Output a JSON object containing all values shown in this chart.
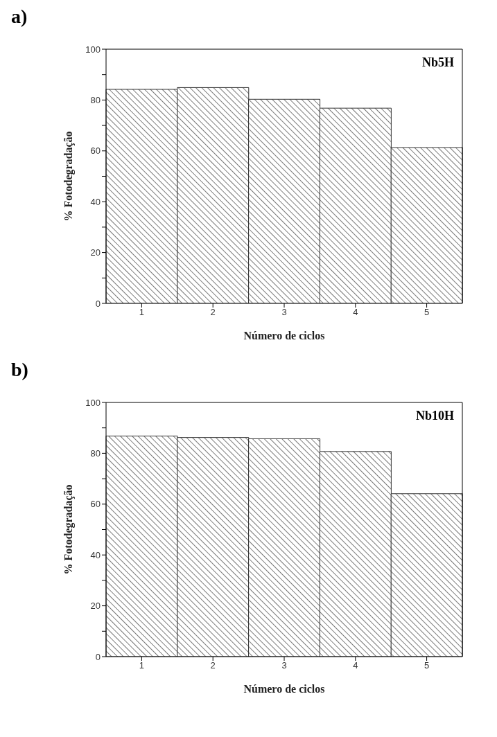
{
  "chart_data": [
    {
      "type": "bar",
      "title": "a)",
      "xlabel": "Número de ciclos",
      "ylabel": "%  Fotodegradação",
      "annotations": [
        "Nb5H"
      ],
      "categories": [
        "1",
        "2",
        "3",
        "4",
        "5"
      ],
      "values": [
        84.2,
        84.9,
        80.3,
        76.8,
        61.3
      ],
      "color": "#333333",
      "ylim": [
        0,
        100
      ],
      "yticks": [
        0,
        {
          "value": 10,
          "label": null
        },
        20,
        {
          "value": 30,
          "label": null
        },
        40,
        {
          "value": 50,
          "label": null
        },
        60,
        {
          "value": 70,
          "label": null
        },
        80,
        {
          "value": 90,
          "label": null
        },
        100
      ],
      "grid": false,
      "legend": false
    },
    {
      "type": "bar",
      "title": "b)",
      "xlabel": "Número de ciclos",
      "ylabel": "%  Fotodegradação",
      "annotations": [
        "Nb10H"
      ],
      "categories": [
        "1",
        "2",
        "3",
        "4",
        "5"
      ],
      "values": [
        86.8,
        86.2,
        85.7,
        80.7,
        64.1
      ],
      "color": "#333333",
      "ylim": [
        0,
        100
      ],
      "yticks": [
        0,
        {
          "value": 10,
          "label": null
        },
        20,
        {
          "value": 30,
          "label": null
        },
        40,
        {
          "value": 50,
          "label": null
        },
        60,
        {
          "value": 70,
          "label": null
        },
        80,
        {
          "value": 90,
          "label": null
        },
        100
      ],
      "grid": false,
      "legend": false
    }
  ]
}
